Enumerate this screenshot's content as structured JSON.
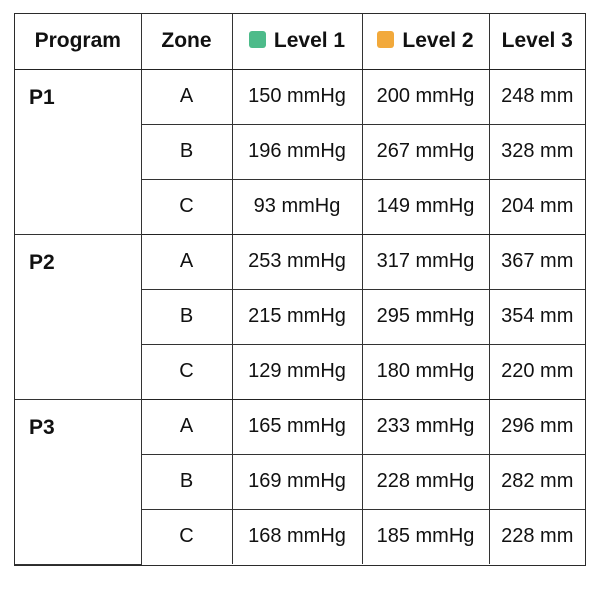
{
  "table": {
    "columns": {
      "program": "Program",
      "zone": "Zone",
      "level1": "Level 1",
      "level2": "Level 2",
      "level3": "Level 3"
    },
    "legend_colors": {
      "level1": "#4dbb8a",
      "level2": "#f2a93b"
    },
    "groups": [
      {
        "program": "P1",
        "rows": [
          {
            "zone": "A",
            "level1": "150 mmHg",
            "level2": "200 mmHg",
            "level3": "248 mm"
          },
          {
            "zone": "B",
            "level1": "196 mmHg",
            "level2": "267 mmHg",
            "level3": "328 mm"
          },
          {
            "zone": "C",
            "level1": "93 mmHg",
            "level2": "149 mmHg",
            "level3": "204 mm"
          }
        ]
      },
      {
        "program": "P2",
        "rows": [
          {
            "zone": "A",
            "level1": "253 mmHg",
            "level2": "317 mmHg",
            "level3": "367 mm"
          },
          {
            "zone": "B",
            "level1": "215 mmHg",
            "level2": "295 mmHg",
            "level3": "354 mm"
          },
          {
            "zone": "C",
            "level1": "129 mmHg",
            "level2": "180 mmHg",
            "level3": "220 mm"
          }
        ]
      },
      {
        "program": "P3",
        "rows": [
          {
            "zone": "A",
            "level1": "165 mmHg",
            "level2": "233 mmHg",
            "level3": "296 mm"
          },
          {
            "zone": "B",
            "level1": "169 mmHg",
            "level2": "228 mmHg",
            "level3": "282 mm"
          },
          {
            "zone": "C",
            "level1": "168 mmHg",
            "level2": "185 mmHg",
            "level3": "228 mm"
          }
        ]
      }
    ]
  }
}
